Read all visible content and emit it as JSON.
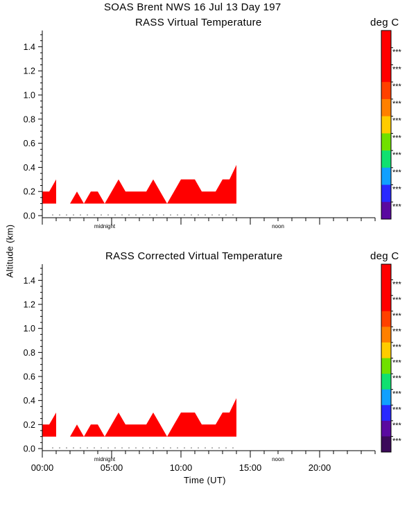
{
  "page_title": "SOAS Brent NWS  16 Jul 13 Day 197",
  "colors": {
    "data_fill": "#ff0000",
    "axis": "#000000",
    "background": "#ffffff",
    "colorbar": [
      "#000000",
      "#3c0a5a",
      "#5a0aa0",
      "#2828ff",
      "#10a0ff",
      "#10e070",
      "#70e000",
      "#ffcc00",
      "#ff8000",
      "#ff4000",
      "#ff0000",
      "#ff0000",
      "#ff0000"
    ]
  },
  "chart_data": [
    {
      "type": "area",
      "title": "RASS Virtual Temperature",
      "unit_label": "deg C",
      "xlabel": "",
      "ylabel": "Altitude (km)",
      "xlim": [
        0,
        24
      ],
      "ylim": [
        0,
        1.6
      ],
      "y_ticks": [
        "0.0",
        "0.2",
        "0.4",
        "0.6",
        "0.8",
        "1.0",
        "1.2",
        "1.4"
      ],
      "x_ticks": [],
      "x_annotations": [
        "midnight",
        "noon"
      ],
      "colorbar_labels": [
        "***",
        "***",
        "***",
        "***",
        "***",
        "***",
        "***",
        "***",
        "***",
        "***"
      ],
      "grid": false,
      "series": [
        {
          "x": [
            0,
            0.5,
            1,
            1.5,
            2,
            2.5,
            3,
            3.5,
            4,
            4.5,
            5,
            5.5,
            6,
            6.5,
            7,
            7.5,
            8,
            8.5,
            9,
            9.5,
            10,
            10.5,
            11,
            11.5,
            12,
            12.5,
            13,
            13.5,
            14
          ],
          "y_top": [
            0.2,
            0.2,
            0.3,
            null,
            0.1,
            0.2,
            0.1,
            0.2,
            0.2,
            0.1,
            0.2,
            0.3,
            0.2,
            0.2,
            0.2,
            0.2,
            0.3,
            0.2,
            0.1,
            0.2,
            0.3,
            0.3,
            0.3,
            0.2,
            0.2,
            0.2,
            0.3,
            0.3,
            0.42
          ],
          "y_bottom": 0.1
        }
      ]
    },
    {
      "type": "area",
      "title": "RASS Corrected Virtual Temperature",
      "unit_label": "deg C",
      "xlabel": "Time (UT)",
      "ylabel": "",
      "xlim": [
        0,
        24
      ],
      "ylim": [
        0,
        1.6
      ],
      "y_ticks": [
        "0.0",
        "0.2",
        "0.4",
        "0.6",
        "0.8",
        "1.0",
        "1.2",
        "1.4"
      ],
      "x_ticks": [
        "00:00",
        "05:00",
        "10:00",
        "15:00",
        "20:00"
      ],
      "x_annotations": [
        "midnight",
        "noon"
      ],
      "colorbar_labels": [
        "***",
        "***",
        "***",
        "***",
        "***",
        "***",
        "***",
        "***",
        "***",
        "***",
        "***"
      ],
      "grid": false,
      "series": [
        {
          "x": [
            0,
            0.5,
            1,
            1.5,
            2,
            2.5,
            3,
            3.5,
            4,
            4.5,
            5,
            5.5,
            6,
            6.5,
            7,
            7.5,
            8,
            8.5,
            9,
            9.5,
            10,
            10.5,
            11,
            11.5,
            12,
            12.5,
            13,
            13.5,
            14
          ],
          "y_top": [
            0.2,
            0.2,
            0.3,
            null,
            0.1,
            0.2,
            0.1,
            0.2,
            0.2,
            0.1,
            0.2,
            0.3,
            0.2,
            0.2,
            0.2,
            0.2,
            0.3,
            0.2,
            0.1,
            0.2,
            0.3,
            0.3,
            0.3,
            0.2,
            0.2,
            0.2,
            0.3,
            0.3,
            0.42
          ],
          "y_bottom": 0.1
        }
      ]
    }
  ]
}
